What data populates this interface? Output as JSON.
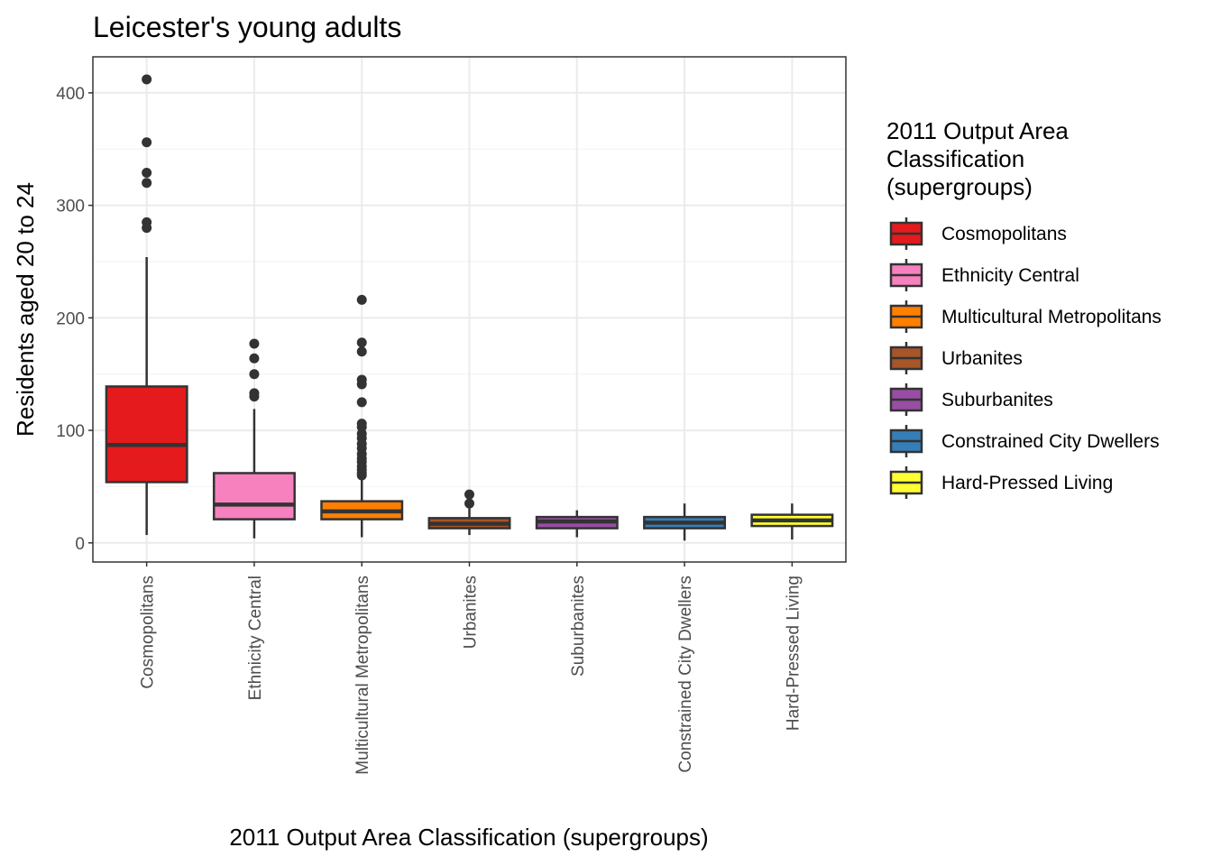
{
  "chart_data": {
    "type": "boxplot",
    "title": "Leicester's young adults",
    "xlabel": "2011 Output Area Classification (supergroups)",
    "ylabel": "Residents aged 20 to 24",
    "ylim": [
      -17,
      432
    ],
    "yticks": [
      0,
      100,
      200,
      300,
      400
    ],
    "grid": true,
    "legend": {
      "title_lines": [
        "2011 Output Area",
        "Classification",
        "(supergroups)"
      ],
      "placement": "right"
    },
    "categories": [
      "Cosmopolitans",
      "Ethnicity Central",
      "Multicultural Metropolitans",
      "Urbanites",
      "Suburbanites",
      "Constrained City Dwellers",
      "Hard-Pressed Living"
    ],
    "colors": [
      "#E41A1C",
      "#F781BF",
      "#FF7F00",
      "#A65628",
      "#984EA3",
      "#377EB8",
      "#FFFF33"
    ],
    "series": [
      {
        "name": "Cosmopolitans",
        "whisker_low": 7,
        "q1": 54,
        "median": 87,
        "q3": 139,
        "whisker_high": 254,
        "outliers": [
          412,
          356,
          329,
          320,
          285,
          280
        ]
      },
      {
        "name": "Ethnicity Central",
        "whisker_low": 4,
        "q1": 21,
        "median": 34,
        "q3": 62,
        "whisker_high": 119,
        "outliers": [
          177,
          164,
          150,
          133,
          130
        ]
      },
      {
        "name": "Multicultural Metropolitans",
        "whisker_low": 5,
        "q1": 21,
        "median": 28,
        "q3": 37,
        "whisker_high": 58,
        "outliers": [
          216,
          178,
          170,
          145,
          141,
          125,
          106,
          103,
          97,
          93,
          88,
          84,
          79,
          75,
          72,
          68,
          65,
          62,
          60
        ]
      },
      {
        "name": "Urbanites",
        "whisker_low": 7,
        "q1": 13,
        "median": 17,
        "q3": 22,
        "whisker_high": 31,
        "outliers": [
          43,
          35
        ]
      },
      {
        "name": "Suburbanites",
        "whisker_low": 5,
        "q1": 13,
        "median": 19,
        "q3": 23,
        "whisker_high": 29,
        "outliers": []
      },
      {
        "name": "Constrained City Dwellers",
        "whisker_low": 2,
        "q1": 13,
        "median": 18,
        "q3": 23,
        "whisker_high": 35,
        "outliers": []
      },
      {
        "name": "Hard-Pressed Living",
        "whisker_low": 3,
        "q1": 15,
        "median": 20,
        "q3": 25,
        "whisker_high": 35,
        "outliers": []
      }
    ]
  }
}
